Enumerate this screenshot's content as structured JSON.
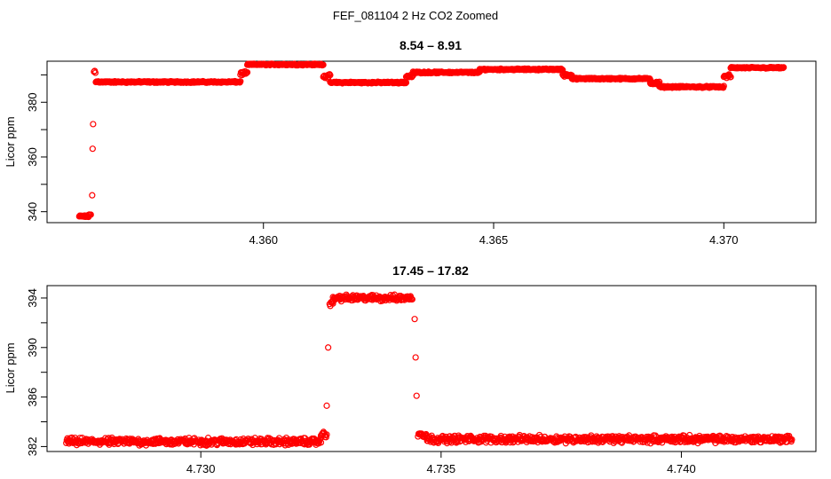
{
  "suptitle": "FEF_081104  2 Hz CO2 Zoomed",
  "colors": {
    "points": "#ff0000",
    "axes": "#000000",
    "background": "#ffffff"
  },
  "chart_data": [
    {
      "type": "scatter",
      "title": "8.54 – 8.91",
      "xlabel": "",
      "ylabel": "Licor ppm",
      "xlim": [
        4.3553,
        4.372
      ],
      "ylim": [
        336,
        395
      ],
      "xticks": [
        4.36,
        4.365,
        4.37
      ],
      "xtick_labels": [
        "4.360",
        "4.365",
        "4.370"
      ],
      "yticks": [
        340,
        350,
        360,
        370,
        380,
        390
      ],
      "ytick_labels": [
        "340",
        "",
        "360",
        "",
        "380",
        ""
      ],
      "grid": false,
      "marker": "open-circle",
      "segments": [
        {
          "x0": 4.356,
          "x1": 4.3562,
          "y": 338.3,
          "noise": 0.4
        },
        {
          "x0": 4.3562,
          "x1": 4.35625,
          "y": 338.8,
          "noise": 0.4
        },
        {
          "x0": 4.35628,
          "x1": 4.35628,
          "y": 346
        },
        {
          "x0": 4.35629,
          "x1": 4.35629,
          "y": 363
        },
        {
          "x0": 4.3563,
          "x1": 4.3563,
          "y": 372
        },
        {
          "x0": 4.35632,
          "x1": 4.35635,
          "y": 391,
          "noise": 1.2
        },
        {
          "x0": 4.35636,
          "x1": 4.35645,
          "y": 387.5,
          "noise": 0.4
        },
        {
          "x0": 4.35645,
          "x1": 4.3595,
          "y": 387.4,
          "noise": 0.35
        },
        {
          "x0": 4.3595,
          "x1": 4.35965,
          "y": 390.5,
          "noise": 0.8
        },
        {
          "x0": 4.35965,
          "x1": 4.3613,
          "y": 393.8,
          "noise": 0.35
        },
        {
          "x0": 4.3613,
          "x1": 4.36145,
          "y": 389.5,
          "noise": 0.8
        },
        {
          "x0": 4.36145,
          "x1": 4.3631,
          "y": 387.2,
          "noise": 0.35
        },
        {
          "x0": 4.3631,
          "x1": 4.36325,
          "y": 389.5,
          "noise": 0.8
        },
        {
          "x0": 4.36325,
          "x1": 4.3647,
          "y": 390.9,
          "noise": 0.35
        },
        {
          "x0": 4.3647,
          "x1": 4.3665,
          "y": 392.0,
          "noise": 0.35
        },
        {
          "x0": 4.3665,
          "x1": 4.3667,
          "y": 390.0,
          "noise": 0.8
        },
        {
          "x0": 4.3667,
          "x1": 4.3684,
          "y": 388.6,
          "noise": 0.35
        },
        {
          "x0": 4.3684,
          "x1": 4.3686,
          "y": 387.0,
          "noise": 0.6
        },
        {
          "x0": 4.3686,
          "x1": 4.37,
          "y": 385.6,
          "noise": 0.35
        },
        {
          "x0": 4.37,
          "x1": 4.37015,
          "y": 389.5,
          "noise": 0.8
        },
        {
          "x0": 4.37015,
          "x1": 4.3713,
          "y": 392.6,
          "noise": 0.35
        }
      ]
    },
    {
      "type": "scatter",
      "title": "17.45 – 17.82",
      "xlabel": "",
      "ylabel": "Licor ppm",
      "xlim": [
        4.7268,
        4.7428
      ],
      "ylim": [
        381.6,
        395.0
      ],
      "xticks": [
        4.73,
        4.735,
        4.74
      ],
      "xtick_labels": [
        "4.730",
        "4.735",
        "4.740"
      ],
      "yticks": [
        382,
        384,
        386,
        388,
        390,
        392,
        394
      ],
      "ytick_labels": [
        "382",
        "",
        "386",
        "",
        "390",
        "",
        "394"
      ],
      "grid": false,
      "marker": "open-circle",
      "segments": [
        {
          "x0": 4.7272,
          "x1": 4.7325,
          "y": 382.4,
          "noise": 0.35
        },
        {
          "x0": 4.7325,
          "x1": 4.73262,
          "y": 383.0,
          "noise": 0.3
        },
        {
          "x0": 4.73262,
          "x1": 4.73262,
          "y": 385.3
        },
        {
          "x0": 4.73265,
          "x1": 4.73265,
          "y": 390.0
        },
        {
          "x0": 4.73268,
          "x1": 4.73275,
          "y": 393.5,
          "noise": 0.3
        },
        {
          "x0": 4.73275,
          "x1": 4.7344,
          "y": 394.0,
          "noise": 0.3
        },
        {
          "x0": 4.73445,
          "x1": 4.73445,
          "y": 392.3
        },
        {
          "x0": 4.73447,
          "x1": 4.73447,
          "y": 389.2
        },
        {
          "x0": 4.73449,
          "x1": 4.73449,
          "y": 386.1
        },
        {
          "x0": 4.73452,
          "x1": 4.7347,
          "y": 383.0,
          "noise": 0.3
        },
        {
          "x0": 4.7347,
          "x1": 4.7423,
          "y": 382.6,
          "noise": 0.35
        }
      ]
    }
  ]
}
